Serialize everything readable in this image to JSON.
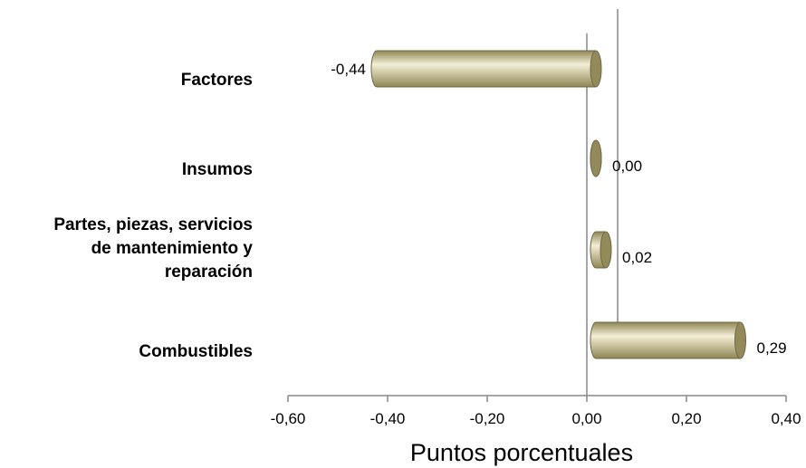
{
  "chart_data": {
    "type": "bar",
    "orientation": "horizontal",
    "categories": [
      "Factores",
      "Insumos",
      "Partes, piezas, servicios de mantenimiento y reparación",
      "Combustibles"
    ],
    "category_lines": [
      [
        "Factores"
      ],
      [
        "Insumos"
      ],
      [
        "Partes, piezas, servicios",
        "de mantenimiento y",
        "reparación"
      ],
      [
        "Combustibles"
      ]
    ],
    "values": [
      -0.44,
      0.0,
      0.02,
      0.29
    ],
    "data_labels": [
      "-0,44",
      "0,00",
      "0,02",
      "0,29"
    ],
    "xlabel": "Puntos porcentuales",
    "ylabel": "",
    "xlim": [
      -0.6,
      0.4
    ],
    "xticks": [
      -0.6,
      -0.4,
      -0.2,
      0.0,
      0.2,
      0.4
    ],
    "xtick_labels": [
      "-0,60",
      "-0,40",
      "-0,20",
      "0,00",
      "0,20",
      "0,40"
    ],
    "grid": false,
    "legend": "none",
    "bar_style": "3d-cylinder",
    "colors": {
      "bar_fill": "#c9c08e",
      "bar_light": "#f3efd6",
      "bar_dark": "#8f8654",
      "bar_end": "#938a5a",
      "bar_stroke": "#6e6845",
      "axis": "#888888"
    }
  }
}
